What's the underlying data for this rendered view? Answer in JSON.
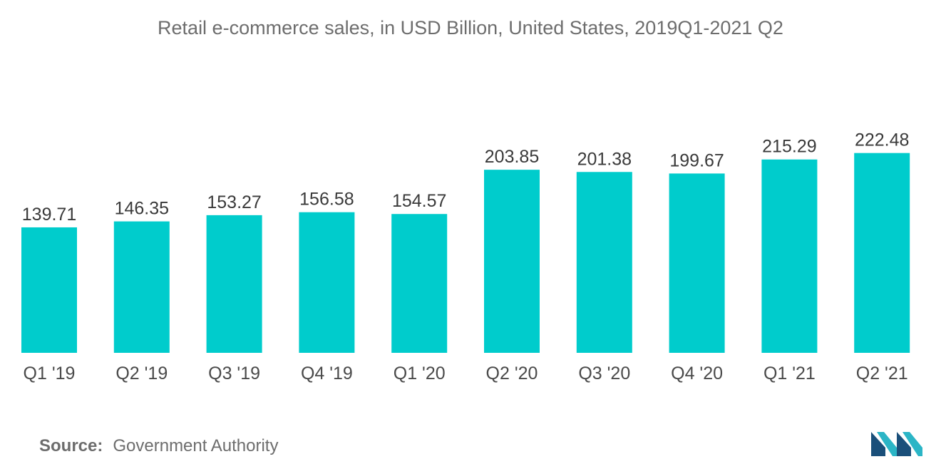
{
  "title": "Retail e-commerce sales, in USD Billion,  United States,  2019Q1-2021 Q2",
  "source": {
    "label": "Source:",
    "text": "Government Authority"
  },
  "colors": {
    "bar": "#00cccc",
    "logo_dark": "#1a4f7a",
    "logo_light": "#2bb5c6"
  },
  "logo_icon": "mordor-intelligence-logo-icon",
  "chart_data": {
    "type": "bar",
    "title": "Retail e-commerce sales, in USD Billion,  United States,  2019Q1-2021 Q2",
    "xlabel": "",
    "ylabel": "",
    "categories": [
      "Q1 '19",
      "Q2 '19",
      "Q3 '19",
      "Q4 '19",
      "Q1 '20",
      "Q2 '20",
      "Q3 '20",
      "Q4 '20",
      "Q1 '21",
      "Q2 '21"
    ],
    "values": [
      139.71,
      146.35,
      153.27,
      156.58,
      154.57,
      203.85,
      201.38,
      199.67,
      215.29,
      222.48
    ],
    "data_labels": [
      "139.71",
      "146.35",
      "153.27",
      "156.58",
      "154.57",
      "203.85",
      "201.38",
      "199.67",
      "215.29",
      "222.48"
    ],
    "grid": false,
    "legend": "none"
  }
}
